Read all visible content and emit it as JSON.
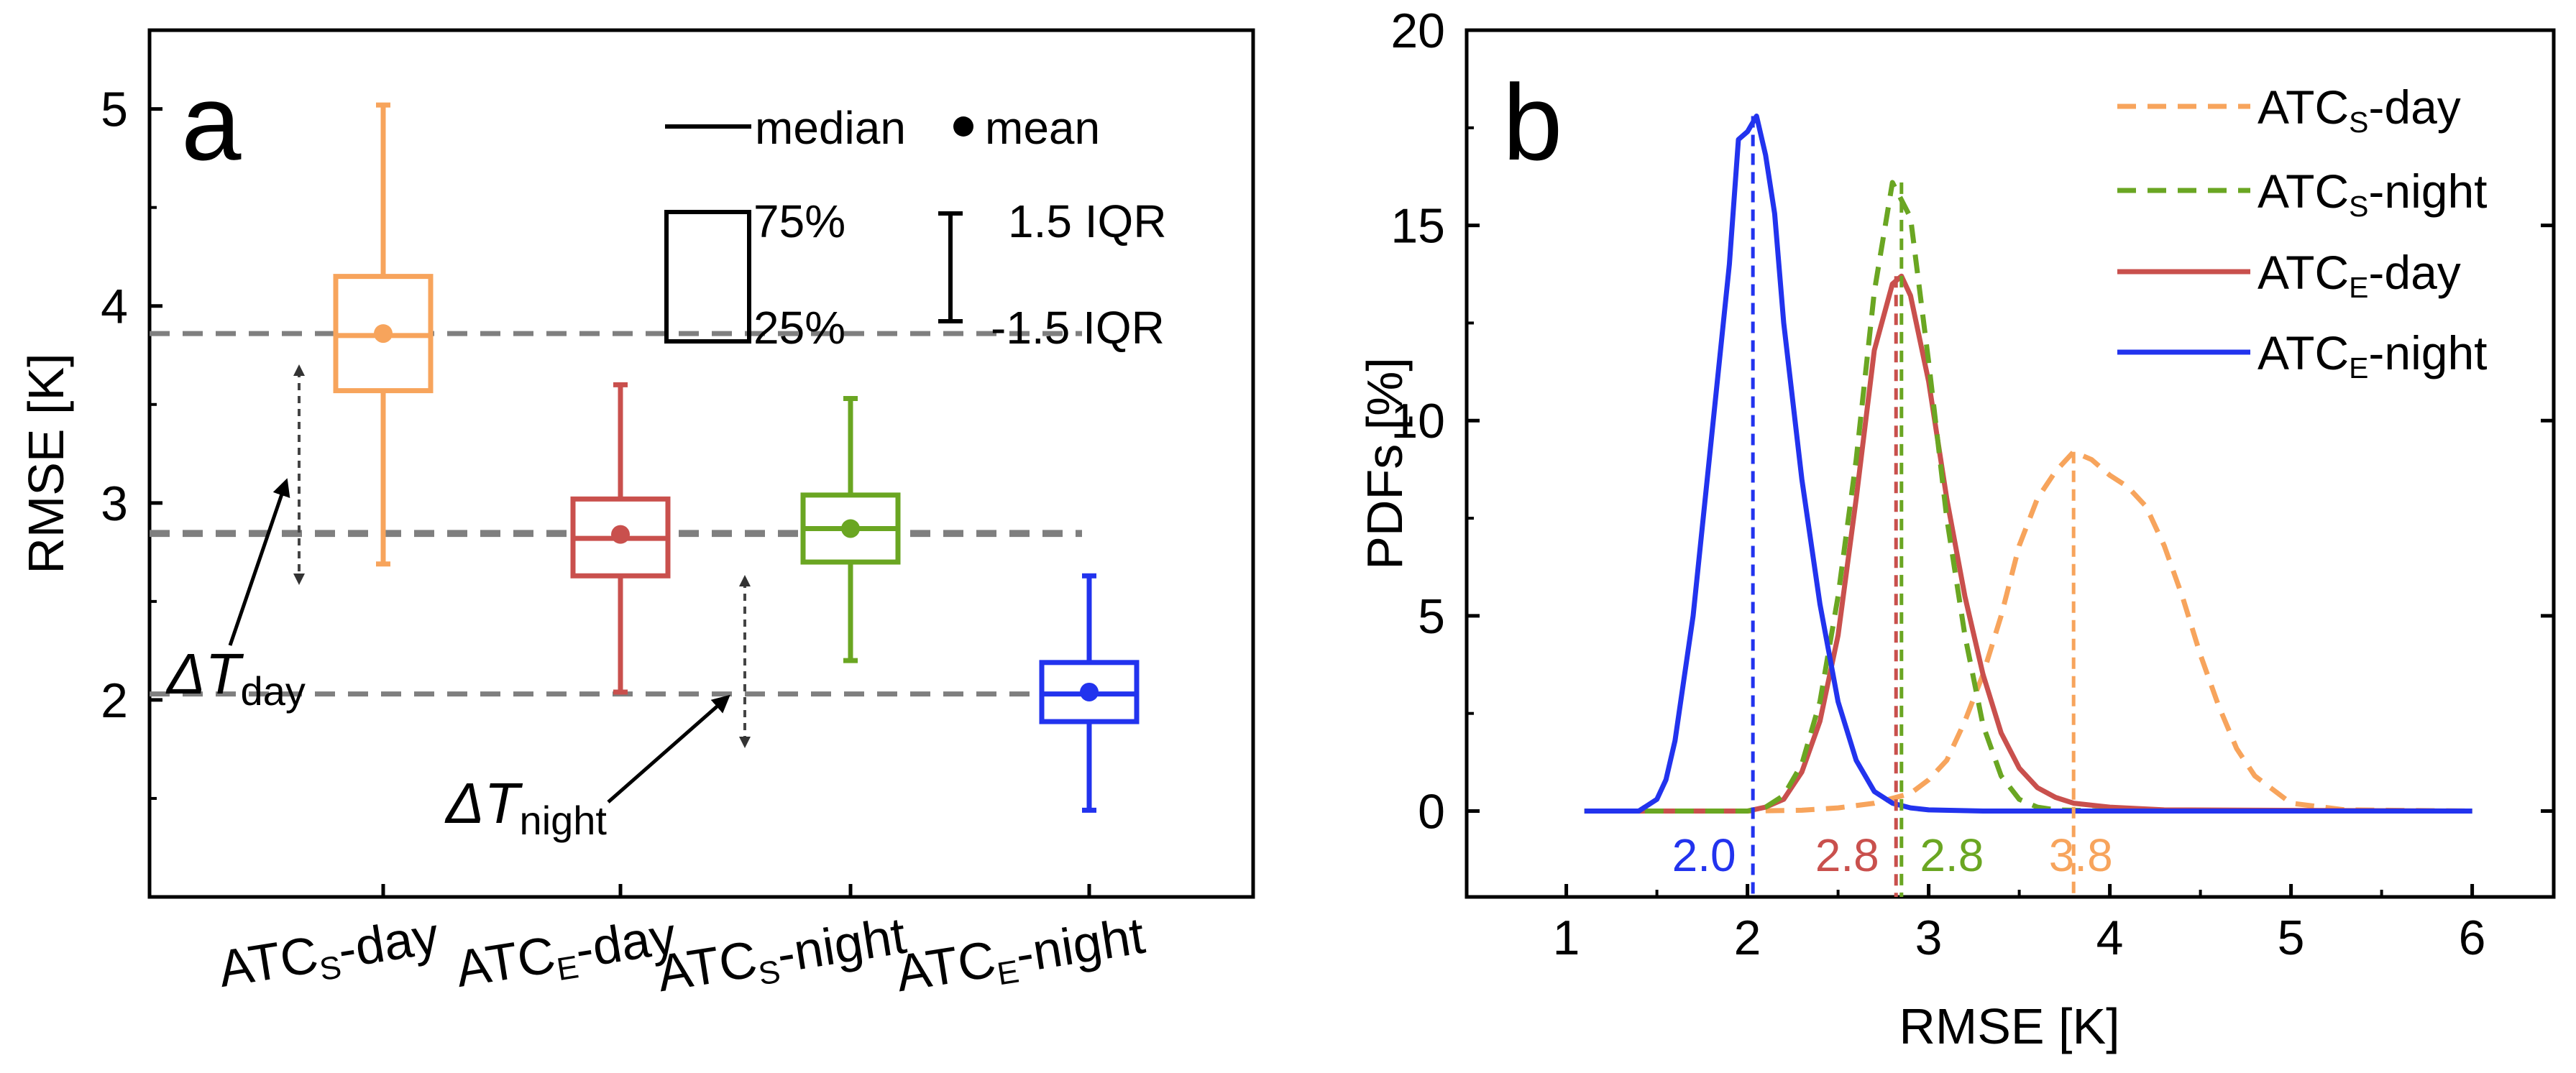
{
  "chart_data": [
    {
      "type": "box",
      "panel_label": "a",
      "ylabel": "RMSE [K]",
      "ylim": [
        1.0,
        5.4
      ],
      "yticks": [
        "2",
        "3",
        "4",
        "5"
      ],
      "categories": [
        {
          "base": "ATC",
          "sub": "S",
          "suffix": "-day"
        },
        {
          "base": "ATC",
          "sub": "E",
          "suffix": "-day"
        },
        {
          "base": "ATC",
          "sub": "S",
          "suffix": "-night"
        },
        {
          "base": "ATC",
          "sub": "E",
          "suffix": "-night"
        }
      ],
      "boxes": [
        {
          "q1": 3.57,
          "median": 3.85,
          "q3": 4.15,
          "mean": 3.86,
          "whisker_low": 2.69,
          "whisker_high": 5.02,
          "color": "#f7a45c"
        },
        {
          "q1": 2.63,
          "median": 2.82,
          "q3": 3.02,
          "mean": 2.84,
          "whisker_low": 2.04,
          "whisker_high": 3.6,
          "color": "#c9504d"
        },
        {
          "q1": 2.7,
          "median": 2.87,
          "q3": 3.04,
          "mean": 2.87,
          "whisker_low": 2.2,
          "whisker_high": 3.53,
          "color": "#6aa622"
        },
        {
          "q1": 1.89,
          "median": 2.03,
          "q3": 2.19,
          "mean": 2.04,
          "whisker_low": 1.44,
          "whisker_high": 2.63,
          "color": "#2233ee"
        }
      ],
      "reference_lines": [
        3.86,
        2.85,
        2.84,
        2.03
      ],
      "legend": {
        "median": "median",
        "mean": "mean",
        "q3": "75%",
        "q1": "25%",
        "whisker_high": "1.5 IQR",
        "whisker_low": "-1.5 IQR"
      },
      "annotations": {
        "day": {
          "symbol": "ΔT",
          "sub": "day"
        },
        "night": {
          "symbol": "ΔT",
          "sub": "night"
        }
      }
    },
    {
      "type": "line",
      "panel_label": "b",
      "xlabel": "RMSE [K]",
      "ylabel": "PDFs [%]",
      "xlim": [
        0.45,
        6.45
      ],
      "ylim": [
        -2.2,
        20
      ],
      "xticks": [
        "1",
        "2",
        "3",
        "4",
        "5",
        "6"
      ],
      "yticks": [
        "0",
        "5",
        "10",
        "15",
        "20"
      ],
      "series": [
        {
          "label": {
            "base": "ATC",
            "sub": "S",
            "suffix": "-day"
          },
          "color": "#f7a45c",
          "dash": true,
          "x": [
            1.1,
            1.8,
            2.0,
            2.3,
            2.5,
            2.7,
            2.9,
            3.0,
            3.1,
            3.2,
            3.3,
            3.4,
            3.5,
            3.6,
            3.7,
            3.8,
            3.9,
            4.0,
            4.1,
            4.2,
            4.3,
            4.4,
            4.5,
            4.6,
            4.7,
            4.8,
            5.0,
            5.3,
            6.0
          ],
          "y": [
            0,
            0,
            0,
            0.02,
            0.08,
            0.2,
            0.45,
            0.8,
            1.3,
            2.3,
            3.5,
            5.0,
            6.8,
            8.0,
            8.7,
            9.2,
            9.0,
            8.6,
            8.3,
            7.8,
            6.8,
            5.5,
            4.0,
            2.7,
            1.6,
            0.9,
            0.2,
            0.03,
            0
          ],
          "peak_label": "3.8",
          "peak_x": 3.8
        },
        {
          "label": {
            "base": "ATC",
            "sub": "S",
            "suffix": "-night"
          },
          "color": "#6aa622",
          "dash": true,
          "x": [
            1.1,
            2.0,
            2.1,
            2.2,
            2.3,
            2.4,
            2.5,
            2.6,
            2.7,
            2.8,
            2.9,
            3.0,
            3.1,
            3.2,
            3.3,
            3.4,
            3.5,
            3.6,
            3.7,
            4.0,
            6.0
          ],
          "y": [
            0,
            0,
            0.1,
            0.4,
            1.2,
            2.8,
            5.5,
            9.0,
            13.3,
            16.1,
            15.2,
            11.5,
            7.5,
            4.5,
            2.2,
            0.9,
            0.3,
            0.1,
            0.03,
            0,
            0
          ],
          "peak_label": "2.8",
          "peak_x": 2.85
        },
        {
          "label": {
            "base": "ATC",
            "sub": "E",
            "suffix": "-day"
          },
          "color": "#c9504d",
          "dash": false,
          "x": [
            1.1,
            2.0,
            2.1,
            2.2,
            2.3,
            2.4,
            2.5,
            2.6,
            2.7,
            2.8,
            2.85,
            2.9,
            3.0,
            3.1,
            3.2,
            3.3,
            3.4,
            3.5,
            3.6,
            3.7,
            3.8,
            4.0,
            4.3,
            6.0
          ],
          "y": [
            0,
            0,
            0.1,
            0.3,
            1.0,
            2.3,
            4.5,
            8.0,
            11.8,
            13.5,
            13.7,
            13.2,
            11.0,
            8.0,
            5.5,
            3.5,
            2.0,
            1.1,
            0.6,
            0.35,
            0.2,
            0.1,
            0.03,
            0
          ],
          "peak_label": "2.8",
          "peak_x": 2.82
        },
        {
          "label": {
            "base": "ATC",
            "sub": "E",
            "suffix": "-night"
          },
          "color": "#2233ee",
          "dash": false,
          "x": [
            1.1,
            1.4,
            1.5,
            1.55,
            1.6,
            1.7,
            1.8,
            1.9,
            1.95,
            2.0,
            2.05,
            2.1,
            2.15,
            2.2,
            2.3,
            2.4,
            2.5,
            2.6,
            2.7,
            2.8,
            2.9,
            3.0,
            3.3,
            6.0
          ],
          "y": [
            0,
            0,
            0.3,
            0.8,
            1.8,
            5.0,
            9.5,
            14.0,
            17.2,
            17.4,
            17.8,
            16.8,
            15.3,
            12.5,
            8.5,
            5.3,
            2.8,
            1.3,
            0.5,
            0.2,
            0.08,
            0.03,
            0,
            0
          ],
          "peak_label": "2.0",
          "peak_x": 2.03
        }
      ]
    }
  ]
}
